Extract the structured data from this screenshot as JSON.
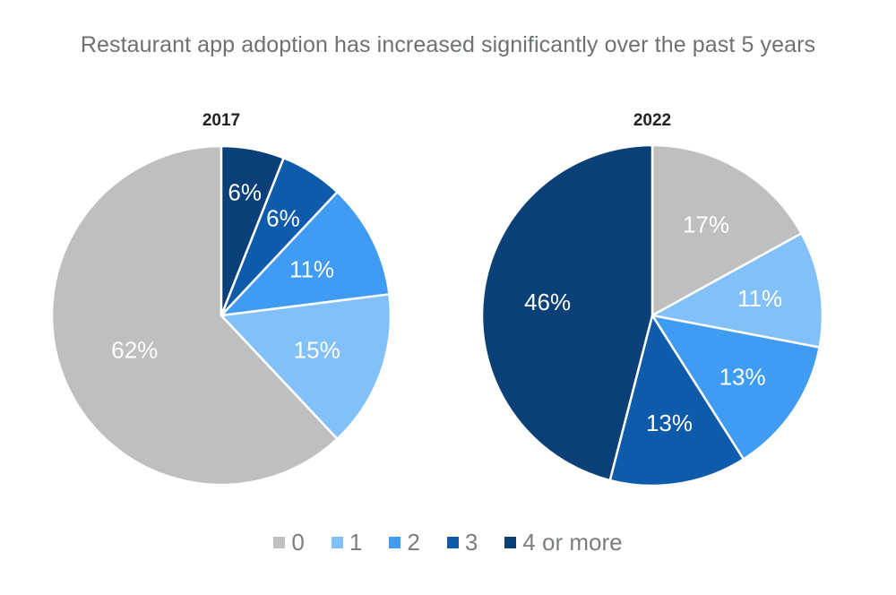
{
  "chart_data": {
    "type": "pie",
    "title": "Restaurant app adoption has increased significantly over the past 5 years",
    "legend_position": "bottom",
    "categories": [
      "0",
      "1",
      "2",
      "3",
      "4 or more"
    ],
    "colors": [
      "#bdbfc0",
      "#82c0fa",
      "#3f9cf2",
      "#0f5bab",
      "#0a3f78"
    ],
    "charts": [
      {
        "name": "2017",
        "values": [
          62,
          15,
          11,
          6,
          6
        ],
        "labels": [
          "62%",
          "15%",
          "11%",
          "6%",
          "6%"
        ]
      },
      {
        "name": "2022",
        "values": [
          17,
          11,
          13,
          13,
          46
        ],
        "labels": [
          "17%",
          "11%",
          "13%",
          "13%",
          "46%"
        ]
      }
    ]
  }
}
